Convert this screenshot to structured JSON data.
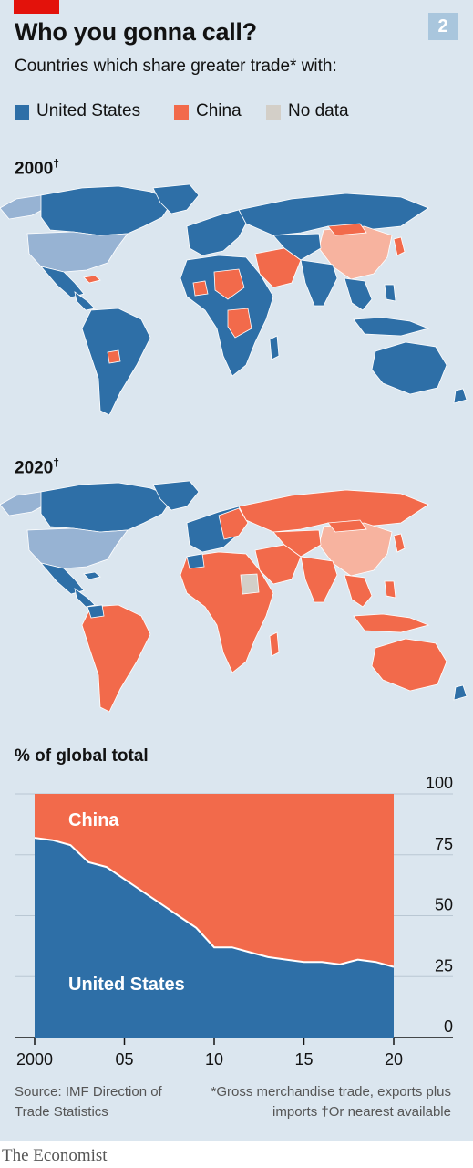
{
  "header": {
    "chart_number": "2",
    "title": "Who you gonna call?",
    "subtitle": "Countries which share greater trade* with:"
  },
  "legend": [
    {
      "label": "United States",
      "color": "#2e6fa7"
    },
    {
      "label": "China",
      "color": "#f26a4b"
    },
    {
      "label": "No data",
      "color": "#d3cfc8"
    }
  ],
  "maps": [
    {
      "label": "2000",
      "mark": "†"
    },
    {
      "label": "2020",
      "mark": "†"
    }
  ],
  "colors": {
    "background": "#dbe6ef",
    "us": "#2e6fa7",
    "china": "#f26a4b",
    "us_self": "#97b3d3",
    "china_self": "#f7b39f",
    "no_data": "#d3cfc8",
    "brand_red": "#e3120b"
  },
  "chart_data": {
    "type": "area",
    "title": "% of global total",
    "x": [
      2000,
      2001,
      2002,
      2003,
      2004,
      2005,
      2006,
      2007,
      2008,
      2009,
      2010,
      2011,
      2012,
      2013,
      2014,
      2015,
      2016,
      2017,
      2018,
      2019,
      2020
    ],
    "xtick_labels": [
      "2000",
      "05",
      "10",
      "15",
      "20"
    ],
    "xticks": [
      2000,
      2005,
      2010,
      2015,
      2020
    ],
    "yticks": [
      0,
      25,
      50,
      75,
      100
    ],
    "ylim": [
      0,
      100
    ],
    "xlim": [
      2000,
      2020
    ],
    "series": [
      {
        "name": "United States",
        "values": [
          82,
          81,
          79,
          72,
          70,
          65,
          60,
          55,
          50,
          45,
          37,
          37,
          35,
          33,
          32,
          31,
          31,
          30,
          32,
          31,
          29
        ]
      },
      {
        "name": "China",
        "values": [
          18,
          19,
          21,
          28,
          30,
          35,
          40,
          45,
          50,
          55,
          63,
          63,
          65,
          67,
          68,
          69,
          69,
          70,
          68,
          69,
          71
        ]
      }
    ]
  },
  "footer": {
    "source": "Source: IMF Direction of Trade Statistics",
    "note_gross": "*Gross merchandise trade, exports plus imports",
    "note_dagger": "†Or nearest available",
    "brand": "The Economist"
  }
}
